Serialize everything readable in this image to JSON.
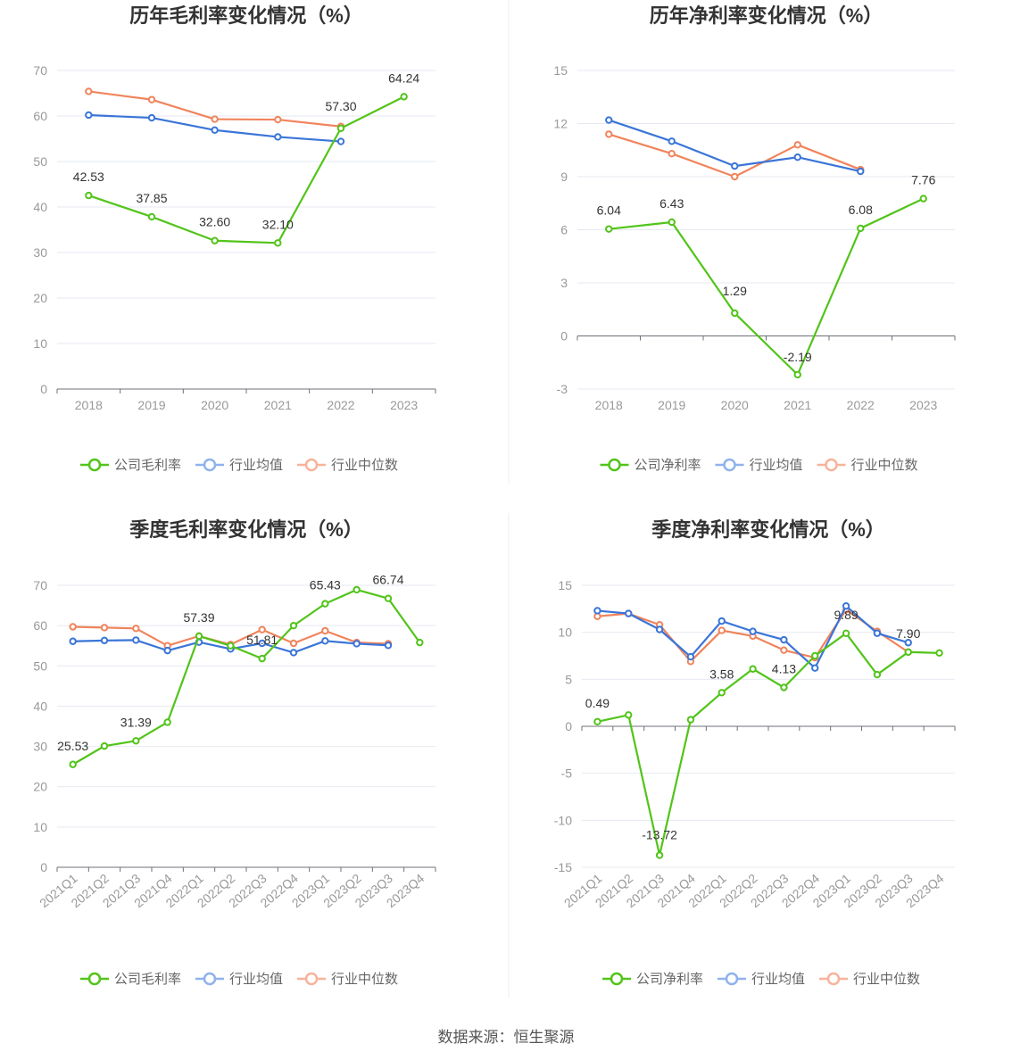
{
  "source": "数据来源：恒生聚源",
  "colors": {
    "company": "#52c41a",
    "avg": "#3a75d8",
    "median": "#f0845c"
  },
  "chart_data": [
    {
      "id": "annual-gross",
      "type": "line",
      "title": "历年毛利率变化情况（%）",
      "categories": [
        "2018",
        "2019",
        "2020",
        "2021",
        "2022",
        "2023"
      ],
      "ylim": [
        0,
        70
      ],
      "yticks": [
        0,
        10,
        20,
        30,
        40,
        50,
        60,
        70
      ],
      "series": [
        {
          "name": "公司毛利率",
          "color": "#52c41a",
          "values": [
            42.53,
            37.85,
            32.6,
            32.1,
            57.3,
            64.24
          ]
        },
        {
          "name": "行业均值",
          "color": "#3a75d8",
          "values": [
            60.2,
            59.6,
            56.9,
            55.4,
            54.4,
            null
          ]
        },
        {
          "name": "行业中位数",
          "color": "#f0845c",
          "values": [
            65.4,
            63.6,
            59.3,
            59.2,
            57.7,
            null
          ]
        }
      ],
      "labels": [
        {
          "i": 0,
          "text": "42.53"
        },
        {
          "i": 1,
          "text": "37.85"
        },
        {
          "i": 2,
          "text": "32.60"
        },
        {
          "i": 3,
          "text": "32.10"
        },
        {
          "i": 4,
          "text": "57.30"
        },
        {
          "i": 5,
          "text": "64.24"
        }
      ]
    },
    {
      "id": "annual-net",
      "type": "line",
      "title": "历年净利率变化情况（%）",
      "categories": [
        "2018",
        "2019",
        "2020",
        "2021",
        "2022",
        "2023"
      ],
      "ylim": [
        -3,
        15
      ],
      "yticks": [
        -3,
        0,
        3,
        6,
        9,
        12,
        15
      ],
      "series": [
        {
          "name": "公司净利率",
          "color": "#52c41a",
          "values": [
            6.04,
            6.43,
            1.29,
            -2.19,
            6.08,
            7.76
          ]
        },
        {
          "name": "行业均值",
          "color": "#3a75d8",
          "values": [
            12.2,
            11.0,
            9.6,
            10.1,
            9.3,
            null
          ]
        },
        {
          "name": "行业中位数",
          "color": "#f0845c",
          "values": [
            11.4,
            10.3,
            9.0,
            10.8,
            9.4,
            null
          ]
        }
      ],
      "labels": [
        {
          "i": 0,
          "text": "6.04"
        },
        {
          "i": 1,
          "text": "6.43"
        },
        {
          "i": 2,
          "text": "1.29"
        },
        {
          "i": 3,
          "text": "-2.19"
        },
        {
          "i": 4,
          "text": "6.08"
        },
        {
          "i": 5,
          "text": "7.76"
        }
      ]
    },
    {
      "id": "quarterly-gross",
      "type": "line",
      "title": "季度毛利率变化情况（%）",
      "categories": [
        "2021Q1",
        "2021Q2",
        "2021Q3",
        "2021Q4",
        "2022Q1",
        "2022Q2",
        "2022Q3",
        "2022Q4",
        "2023Q1",
        "2023Q2",
        "2023Q3",
        "2023Q4"
      ],
      "ylim": [
        0,
        70
      ],
      "yticks": [
        0,
        10,
        20,
        30,
        40,
        50,
        60,
        70
      ],
      "series": [
        {
          "name": "公司毛利率",
          "color": "#52c41a",
          "values": [
            25.53,
            30.1,
            31.39,
            36.0,
            57.39,
            55.0,
            51.81,
            60.0,
            65.43,
            68.9,
            66.74,
            55.8
          ]
        },
        {
          "name": "行业均值",
          "color": "#3a75d8",
          "values": [
            56.1,
            56.3,
            56.4,
            53.8,
            55.9,
            54.2,
            55.6,
            53.3,
            56.2,
            55.5,
            55.1,
            null
          ]
        },
        {
          "name": "行业中位数",
          "color": "#f0845c",
          "values": [
            59.7,
            59.5,
            59.3,
            55.0,
            57.4,
            55.3,
            59.0,
            55.6,
            58.7,
            55.8,
            55.5,
            null
          ]
        }
      ],
      "labels": [
        {
          "i": 0,
          "text": "25.53"
        },
        {
          "i": 2,
          "text": "31.39"
        },
        {
          "i": 4,
          "text": "57.39"
        },
        {
          "i": 6,
          "text": "51.81"
        },
        {
          "i": 8,
          "text": "65.43"
        },
        {
          "i": 10,
          "text": "66.74"
        }
      ]
    },
    {
      "id": "quarterly-net",
      "type": "line",
      "title": "季度净利率变化情况（%）",
      "categories": [
        "2021Q1",
        "2021Q2",
        "2021Q3",
        "2021Q4",
        "2022Q1",
        "2022Q2",
        "2022Q3",
        "2022Q4",
        "2023Q1",
        "2023Q2",
        "2023Q3",
        "2023Q4"
      ],
      "ylim": [
        -15,
        15
      ],
      "yticks": [
        -15,
        -10,
        -5,
        0,
        5,
        10,
        15
      ],
      "series": [
        {
          "name": "公司净利率",
          "color": "#52c41a",
          "values": [
            0.49,
            1.2,
            -13.72,
            0.7,
            3.58,
            6.1,
            4.13,
            7.5,
            9.89,
            5.5,
            7.9,
            7.8
          ]
        },
        {
          "name": "行业均值",
          "color": "#3a75d8",
          "values": [
            12.3,
            12.0,
            10.3,
            7.4,
            11.2,
            10.1,
            9.2,
            6.2,
            12.8,
            9.9,
            8.9,
            null
          ]
        },
        {
          "name": "行业中位数",
          "color": "#f0845c",
          "values": [
            11.7,
            12.0,
            10.8,
            6.9,
            10.2,
            9.6,
            8.1,
            7.3,
            12.4,
            10.1,
            7.9,
            null
          ]
        }
      ],
      "labels": [
        {
          "i": 0,
          "text": "0.49"
        },
        {
          "i": 2,
          "text": "-13.72"
        },
        {
          "i": 4,
          "text": "3.58"
        },
        {
          "i": 6,
          "text": "4.13"
        },
        {
          "i": 8,
          "text": "9.89"
        },
        {
          "i": 10,
          "text": "7.90"
        }
      ]
    }
  ]
}
